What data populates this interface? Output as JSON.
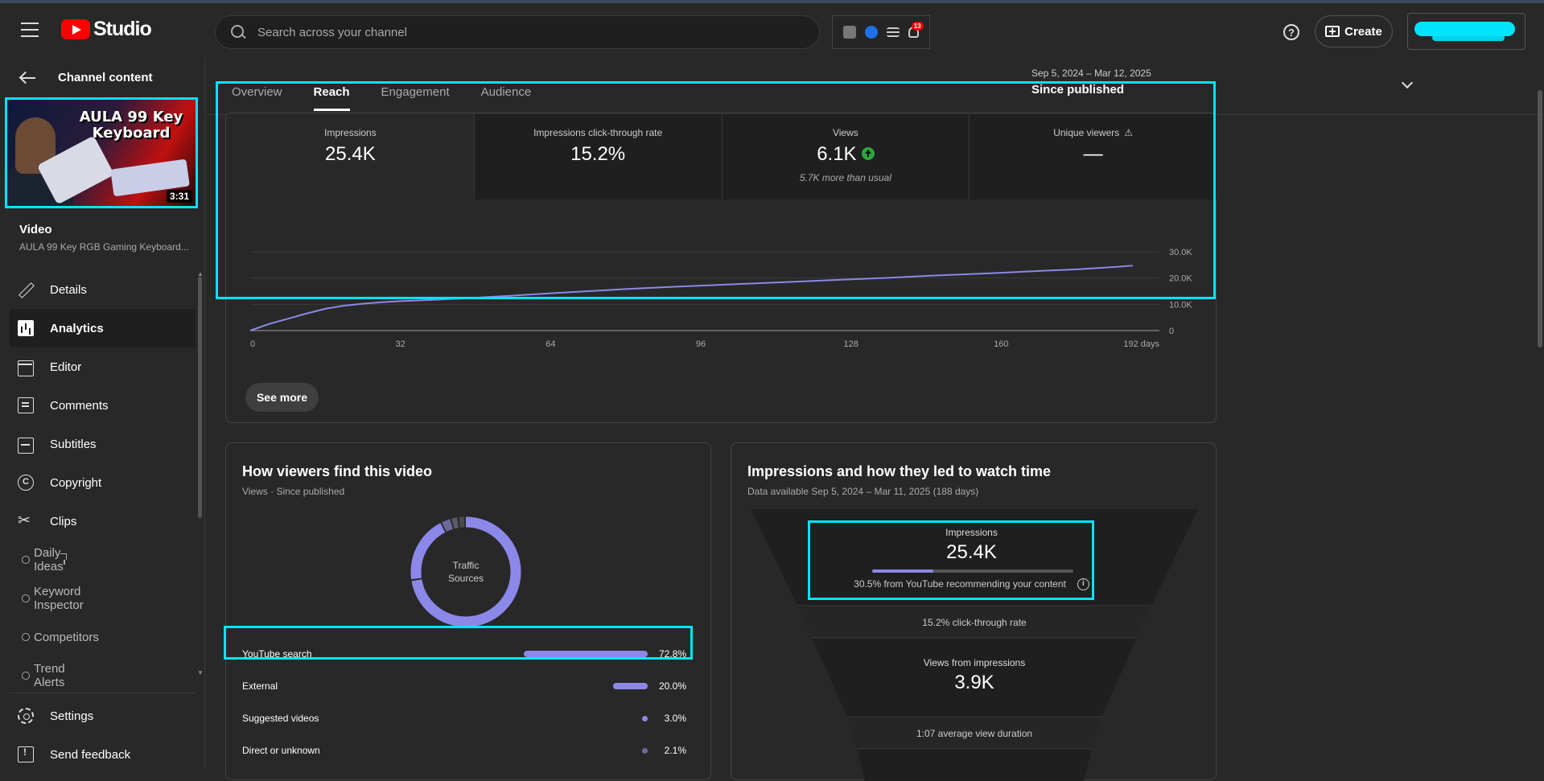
{
  "header": {
    "logo_text": "Studio",
    "search_placeholder": "Search across your channel",
    "notification_count": "13",
    "create_label": "Create",
    "help_glyph": "?"
  },
  "sidebar": {
    "back_label": "Channel content",
    "thumbnail": {
      "title_line1": "AULA 99 Key",
      "title_line2": "Keyboard",
      "duration": "3:31"
    },
    "video_label": "Video",
    "video_name": "AULA 99 Key RGB Gaming Keyboard...",
    "items": [
      {
        "label": "Details",
        "icon": "pencil-icon"
      },
      {
        "label": "Analytics",
        "icon": "analytics-icon"
      },
      {
        "label": "Editor",
        "icon": "editor-icon"
      },
      {
        "label": "Comments",
        "icon": "comments-icon"
      },
      {
        "label": "Subtitles",
        "icon": "subtitles-icon"
      },
      {
        "label": "Copyright",
        "icon": "copyright-icon",
        "glyph": "C"
      },
      {
        "label": "Clips",
        "icon": "scissors-icon"
      },
      {
        "label": "Daily Ideas",
        "icon": "extension-icon"
      },
      {
        "label": "Keyword Inspector",
        "icon": "extension-icon"
      },
      {
        "label": "Competitors",
        "icon": "extension-icon"
      },
      {
        "label": "Trend Alerts",
        "icon": "extension-icon"
      }
    ],
    "bottom_items": [
      {
        "label": "Settings",
        "icon": "gear-icon"
      },
      {
        "label": "Send feedback",
        "icon": "feedback-icon"
      }
    ]
  },
  "main": {
    "tabs": [
      {
        "label": "Overview"
      },
      {
        "label": "Reach"
      },
      {
        "label": "Engagement"
      },
      {
        "label": "Audience"
      }
    ],
    "active_tab": "Reach",
    "date_range": "Sep 5, 2024 – Mar 12, 2025",
    "date_preset": "Since published",
    "metrics": [
      {
        "label": "Impressions",
        "value": "25.4K"
      },
      {
        "label": "Impressions click-through rate",
        "value": "15.2%"
      },
      {
        "label": "Views",
        "value": "6.1K",
        "note": "5.7K more than usual",
        "trend": "up"
      },
      {
        "label": "Unique viewers",
        "value": "—",
        "warning": "⚠"
      }
    ],
    "see_more": "See more"
  },
  "chart_data": {
    "type": "line",
    "x": [
      0,
      4,
      8,
      12,
      16,
      20,
      24,
      28,
      32,
      40,
      48,
      56,
      64,
      72,
      80,
      88,
      96,
      104,
      112,
      120,
      128,
      136,
      144,
      152,
      160,
      168,
      176,
      184,
      188
    ],
    "series": [
      {
        "values": [
          0,
          2500,
          4500,
          6500,
          8300,
          9500,
          10200,
          10800,
          11200,
          11800,
          12500,
          13300,
          14200,
          15000,
          15800,
          16500,
          17100,
          17700,
          18300,
          18900,
          19500,
          20100,
          20800,
          21400,
          22000,
          22700,
          23300,
          24200,
          24700
        ],
        "color": "#8b88ea"
      }
    ],
    "x_ticks": [
      "0",
      "32",
      "64",
      "96",
      "128",
      "160",
      "192 days"
    ],
    "x_tick_values": [
      0,
      32,
      64,
      96,
      128,
      160,
      192
    ],
    "y_ticks": [
      "0",
      "10.0K",
      "20.0K",
      "30.0K"
    ],
    "y_tick_values": [
      0,
      10000,
      20000,
      30000
    ],
    "xlim": [
      0,
      192
    ],
    "ylim": [
      0,
      30000
    ],
    "grid": true
  },
  "traffic": {
    "title": "How viewers find this video",
    "subtitle": "Views · Since published",
    "donut_label_line1": "Traffic",
    "donut_label_line2": "Sources",
    "sources": [
      {
        "name": "YouTube search",
        "pct": "72.8%",
        "value": 72.8
      },
      {
        "name": "External",
        "pct": "20.0%",
        "value": 20.0
      },
      {
        "name": "Suggested videos",
        "pct": "3.0%",
        "value": 3.0
      },
      {
        "name": "Direct or unknown",
        "pct": "2.1%",
        "value": 2.1
      }
    ],
    "donut_colors": [
      "#8b88ea",
      "#8b88ea",
      "#6c6a9a",
      "#5a5a6a",
      "#4a4a4a"
    ]
  },
  "funnel": {
    "title": "Impressions and how they led to watch time",
    "subtitle": "Data available Sep 5, 2024 – Mar 11, 2025 (188 days)",
    "impressions_label": "Impressions",
    "impressions_value": "25.4K",
    "recommend_fraction": 0.305,
    "recommend_note": "30.5% from YouTube recommending your content",
    "info_glyph": "i",
    "ctr_note": "15.2% click-through rate",
    "views_label": "Views from impressions",
    "views_value": "3.9K",
    "duration_note": "1:07 average view duration"
  },
  "colors": {
    "accent": "#8b88ea",
    "highlight": "#00e5ff",
    "brand": "#ff0000",
    "trend_up": "#2ba640"
  }
}
